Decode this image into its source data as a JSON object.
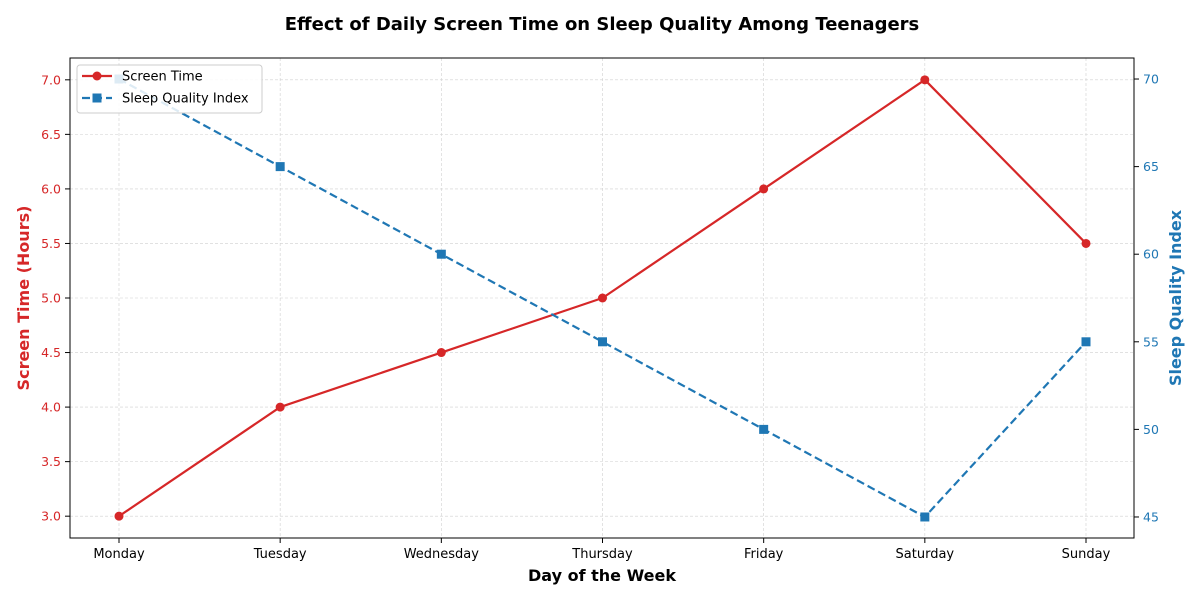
{
  "chart_data": {
    "type": "line",
    "title": "Effect of Daily Screen Time on Sleep Quality Among Teenagers",
    "xlabel": "Day of the Week",
    "ylabel_left": "Screen Time (Hours)",
    "ylabel_right": "Sleep Quality Index",
    "categories": [
      "Monday",
      "Tuesday",
      "Wednesday",
      "Thursday",
      "Friday",
      "Saturday",
      "Sunday"
    ],
    "series": [
      {
        "name": "Screen Time",
        "axis": "left",
        "values": [
          3.0,
          4.0,
          4.5,
          5.0,
          6.0,
          7.0,
          5.5
        ],
        "color": "#d62728",
        "marker": "circle",
        "line_style": "solid"
      },
      {
        "name": "Sleep Quality Index",
        "axis": "right",
        "values": [
          70,
          65,
          60,
          55,
          50,
          45,
          55
        ],
        "color": "#1f77b4",
        "marker": "square",
        "line_style": "dashed"
      }
    ],
    "ylim_left": [
      2.8,
      7.2
    ],
    "ylim_right": [
      43.8,
      71.2
    ],
    "yticks_left": [
      "3.0",
      "3.5",
      "4.0",
      "4.5",
      "5.0",
      "5.5",
      "6.0",
      "6.5",
      "7.0"
    ],
    "yticks_right": [
      "45",
      "50",
      "55",
      "60",
      "65",
      "70"
    ],
    "grid": true,
    "legend_position": "top-left"
  }
}
